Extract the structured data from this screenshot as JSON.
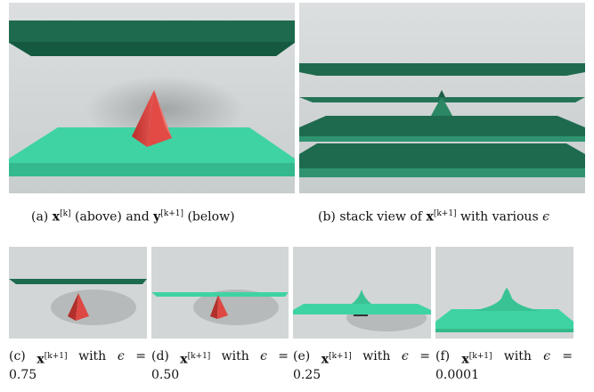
{
  "colors": {
    "background": "#cfd3d4",
    "dark_green_plane": "#1e6a4e",
    "light_green_plane": "#3fd3a3",
    "red_pyramid": "#e14a45"
  },
  "captions": {
    "a": {
      "tag": "(a)",
      "x": "x",
      "x_sup": "[k]",
      "mid": "(above) and",
      "y": "y",
      "y_sup": "[k+1]",
      "tail": "(below)"
    },
    "b": {
      "tag": "(b)",
      "pre": "stack view of",
      "x": "x",
      "x_sup": "[k+1]",
      "tail": "with various",
      "eps": "ϵ"
    },
    "c": {
      "tag": "(c)",
      "x": "x",
      "x_sup": "[k+1]",
      "with": "with",
      "eps": "ϵ",
      "eq": "=",
      "value": "0.75"
    },
    "d": {
      "tag": "(d)",
      "x": "x",
      "x_sup": "[k+1]",
      "with": "with",
      "eps": "ϵ",
      "eq": "=",
      "value": "0.50"
    },
    "e": {
      "tag": "(e)",
      "x": "x",
      "x_sup": "[k+1]",
      "with": "with",
      "eps": "ϵ",
      "eq": "=",
      "value": "0.25"
    },
    "f": {
      "tag": "(f)",
      "x": "x",
      "x_sup": "[k+1]",
      "with": "with",
      "eps": "ϵ",
      "eq": "=",
      "value": "0.0001"
    }
  }
}
